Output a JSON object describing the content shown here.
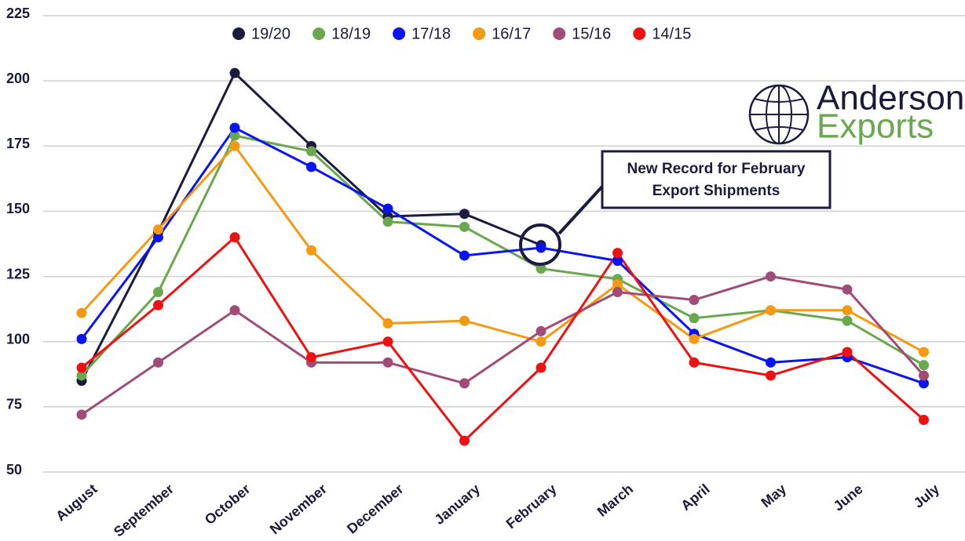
{
  "chart_data": {
    "type": "line",
    "categories": [
      "August",
      "September",
      "October",
      "November",
      "December",
      "January",
      "February",
      "March",
      "April",
      "May",
      "June",
      "July"
    ],
    "series": [
      {
        "name": "19/20",
        "color": "#1b1b3f",
        "values": [
          85,
          142,
          203,
          175,
          148,
          149,
          137,
          null,
          null,
          null,
          null,
          null
        ]
      },
      {
        "name": "18/19",
        "color": "#6aa84f",
        "values": [
          87,
          119,
          179,
          173,
          146,
          144,
          128,
          124,
          109,
          112,
          108,
          91
        ]
      },
      {
        "name": "17/18",
        "color": "#0a14f0",
        "values": [
          101,
          140,
          182,
          167,
          151,
          133,
          136,
          131,
          103,
          92,
          94,
          84
        ]
      },
      {
        "name": "16/17",
        "color": "#f39a12",
        "values": [
          111,
          143,
          175,
          135,
          107,
          108,
          100,
          122,
          101,
          112,
          112,
          96
        ]
      },
      {
        "name": "15/16",
        "color": "#a04c77",
        "values": [
          72,
          92,
          112,
          92,
          92,
          84,
          104,
          119,
          116,
          125,
          120,
          87
        ]
      },
      {
        "name": "14/15",
        "color": "#ee1111",
        "values": [
          90,
          114,
          140,
          94,
          100,
          62,
          90,
          134,
          92,
          87,
          96,
          70
        ]
      }
    ],
    "ylim": [
      50,
      225
    ],
    "yticks": [
      50,
      75,
      100,
      125,
      150,
      175,
      200,
      225
    ],
    "grid": true,
    "legend": "top",
    "annotation": [
      "New Record for February",
      "Export Shipments"
    ]
  },
  "logo": {
    "line1": "Anderson",
    "line2": "Exports"
  }
}
